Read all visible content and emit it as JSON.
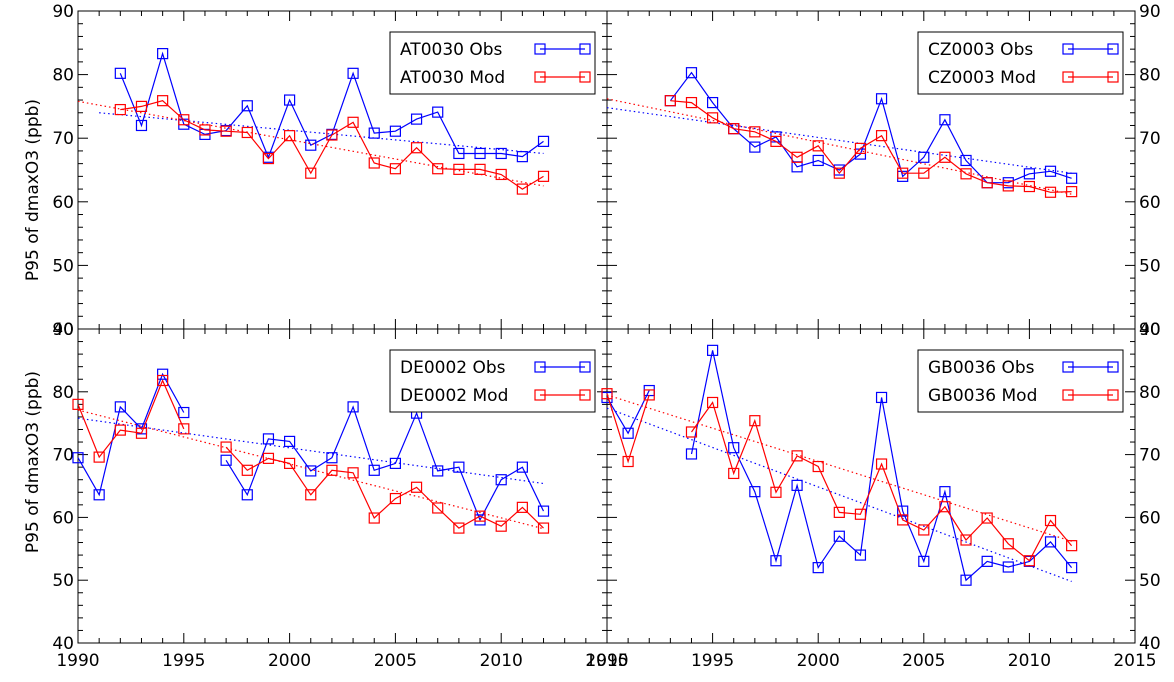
{
  "ylabel": "P95 of dmaxO3 (ppb)",
  "x_ticks": [
    1990,
    1995,
    2000,
    2005,
    2010,
    2015
  ],
  "y_ticks": [
    40,
    50,
    60,
    70,
    80,
    90
  ],
  "colors": {
    "obs": "#0000ff",
    "mod": "#ff0000",
    "axis": "#000000"
  },
  "chart_data": [
    {
      "type": "line",
      "station": "AT0030",
      "xlim": [
        1990,
        2015
      ],
      "ylim": [
        40,
        90
      ],
      "ylabel": "P95 of dmaxO3 (ppb)",
      "series": [
        {
          "name": "AT0030 Obs",
          "x": [
            1992,
            1993,
            1994,
            1995,
            1996,
            1997,
            1998,
            1999,
            2000,
            2001,
            2002,
            2003,
            2004,
            2005,
            2006,
            2007,
            2008,
            2009,
            2010,
            2011,
            2012
          ],
          "y": [
            80.2,
            72.0,
            83.3,
            72.2,
            70.6,
            71.2,
            75.1,
            67.0,
            76.0,
            68.9,
            70.6,
            80.2,
            70.8,
            71.1,
            73.0,
            74.1,
            67.6,
            67.6,
            67.6,
            67.1,
            69.5
          ],
          "trend": [
            [
              1991,
              74.0
            ],
            [
              2012,
              67.6
            ]
          ]
        },
        {
          "name": "AT0030 Mod",
          "x": [
            1992,
            1993,
            1994,
            1995,
            1996,
            1997,
            1998,
            1999,
            2000,
            2001,
            2002,
            2003,
            2004,
            2005,
            2006,
            2007,
            2008,
            2009,
            2010,
            2011,
            2012
          ],
          "y": [
            74.5,
            75.0,
            75.9,
            72.9,
            71.3,
            71.1,
            70.9,
            66.8,
            70.4,
            64.5,
            70.5,
            72.5,
            66.1,
            65.2,
            68.5,
            65.2,
            65.1,
            65.1,
            64.3,
            62.0,
            64.0
          ],
          "trend": [
            [
              1990,
              75.8
            ],
            [
              2012,
              62.5
            ]
          ]
        }
      ]
    },
    {
      "type": "line",
      "station": "CZ0003",
      "xlim": [
        1990,
        2015
      ],
      "ylim": [
        40,
        90
      ],
      "series": [
        {
          "name": "CZ0003 Obs",
          "x": [
            1993,
            1994,
            1995,
            1996,
            1997,
            1998,
            1999,
            2000,
            2001,
            2002,
            2003,
            2004,
            2005,
            2006,
            2007,
            2008,
            2009,
            2010,
            2011,
            2012
          ],
          "y": [
            75.9,
            80.3,
            75.6,
            71.5,
            68.6,
            70.2,
            65.5,
            66.5,
            65.0,
            67.5,
            76.2,
            64.0,
            67.0,
            72.9,
            66.5,
            63.0,
            63.0,
            64.4,
            64.8,
            63.7
          ],
          "trend": [
            [
              1990,
              74.8
            ],
            [
              2012,
              64.5
            ]
          ]
        },
        {
          "name": "CZ0003 Mod",
          "x": [
            1993,
            1994,
            1995,
            1996,
            1997,
            1998,
            1999,
            2000,
            2001,
            2002,
            2003,
            2004,
            2005,
            2006,
            2007,
            2008,
            2009,
            2010,
            2011,
            2012
          ],
          "y": [
            75.9,
            75.6,
            73.2,
            71.5,
            71.0,
            69.5,
            67.0,
            68.8,
            64.5,
            68.4,
            70.4,
            64.5,
            64.5,
            67.0,
            64.4,
            63.0,
            62.5,
            62.4,
            61.5,
            61.6
          ],
          "trend": [
            [
              1990,
              76.2
            ],
            [
              2012,
              61.2
            ]
          ]
        }
      ]
    },
    {
      "type": "line",
      "station": "DE0002",
      "xlim": [
        1990,
        2015
      ],
      "ylim": [
        40,
        90
      ],
      "ylabel": "P95 of dmaxO3 (ppb)",
      "series": [
        {
          "name": "DE0002 Obs",
          "segments": [
            {
              "x": [
                1990,
                1991,
                1992,
                1993,
                1994,
                1995
              ],
              "y": [
                69.5,
                63.6,
                77.6,
                74.1,
                82.8,
                76.7
              ]
            },
            {
              "x": [
                1997,
                1998,
                1999,
                2000,
                2001,
                2002,
                2003,
                2004,
                2005,
                2006,
                2007,
                2008,
                2009,
                2010,
                2011,
                2012
              ],
              "y": [
                69.1,
                63.6,
                72.5,
                72.1,
                67.4,
                69.5,
                77.6,
                67.5,
                68.6,
                76.6,
                67.4,
                68.0,
                59.6,
                66.0,
                68.0,
                61.0
              ]
            }
          ],
          "trend": [
            [
              1990,
              75.8
            ],
            [
              2012,
              65.4
            ]
          ]
        },
        {
          "name": "DE0002 Mod",
          "segments": [
            {
              "x": [
                1990,
                1991,
                1992,
                1993,
                1994,
                1995
              ],
              "y": [
                78.0,
                69.6,
                73.9,
                73.4,
                81.8,
                74.1
              ]
            },
            {
              "x": [
                1997,
                1998,
                1999,
                2000,
                2001,
                2002,
                2003,
                2004,
                2005,
                2006,
                2007,
                2008,
                2009,
                2010,
                2011,
                2012
              ],
              "y": [
                71.2,
                67.5,
                69.4,
                68.6,
                63.6,
                67.5,
                67.1,
                59.9,
                63.0,
                64.8,
                61.5,
                58.3,
                60.2,
                58.6,
                61.6,
                58.3
              ]
            }
          ],
          "trend": [
            [
              1990,
              77.1
            ],
            [
              2012,
              58.2
            ]
          ]
        }
      ]
    },
    {
      "type": "line",
      "station": "GB0036",
      "xlim": [
        1990,
        2015
      ],
      "ylim": [
        40,
        90
      ],
      "series": [
        {
          "name": "GB0036 Obs",
          "segments": [
            {
              "x": [
                1990,
                1991,
                1992
              ],
              "y": [
                79.1,
                73.4,
                80.2
              ]
            },
            {
              "x": [
                1994,
                1995,
                1996,
                1997,
                1998,
                1999,
                2000,
                2001,
                2002,
                2003,
                2004,
                2005,
                2006,
                2007,
                2008,
                2009,
                2010,
                2011,
                2012
              ],
              "y": [
                70.1,
                86.6,
                71.1,
                64.1,
                53.1,
                65.1,
                52.0,
                57.0,
                54.0,
                79.1,
                61.0,
                53.0,
                64.1,
                50.0,
                53.0,
                52.1,
                53.0,
                56.1,
                52.0
              ]
            }
          ],
          "trend": [
            [
              1990,
              77.4
            ],
            [
              2012,
              49.8
            ]
          ]
        },
        {
          "name": "GB0036 Mod",
          "segments": [
            {
              "x": [
                1990,
                1991,
                1992
              ],
              "y": [
                79.7,
                68.9,
                79.5
              ]
            },
            {
              "x": [
                1994,
                1995,
                1996,
                1997,
                1998,
                1999,
                2000,
                2001,
                2002,
                2003,
                2004,
                2005,
                2006,
                2007,
                2008,
                2009,
                2010,
                2011,
                2012
              ],
              "y": [
                73.6,
                78.3,
                67.0,
                75.4,
                64.0,
                69.8,
                68.1,
                60.8,
                60.5,
                68.5,
                59.6,
                58.0,
                61.7,
                56.4,
                59.9,
                55.8,
                53.1,
                59.5,
                55.5
              ]
            }
          ],
          "trend": [
            [
              1990,
              79.5
            ],
            [
              2012,
              56.2
            ]
          ]
        }
      ]
    }
  ]
}
